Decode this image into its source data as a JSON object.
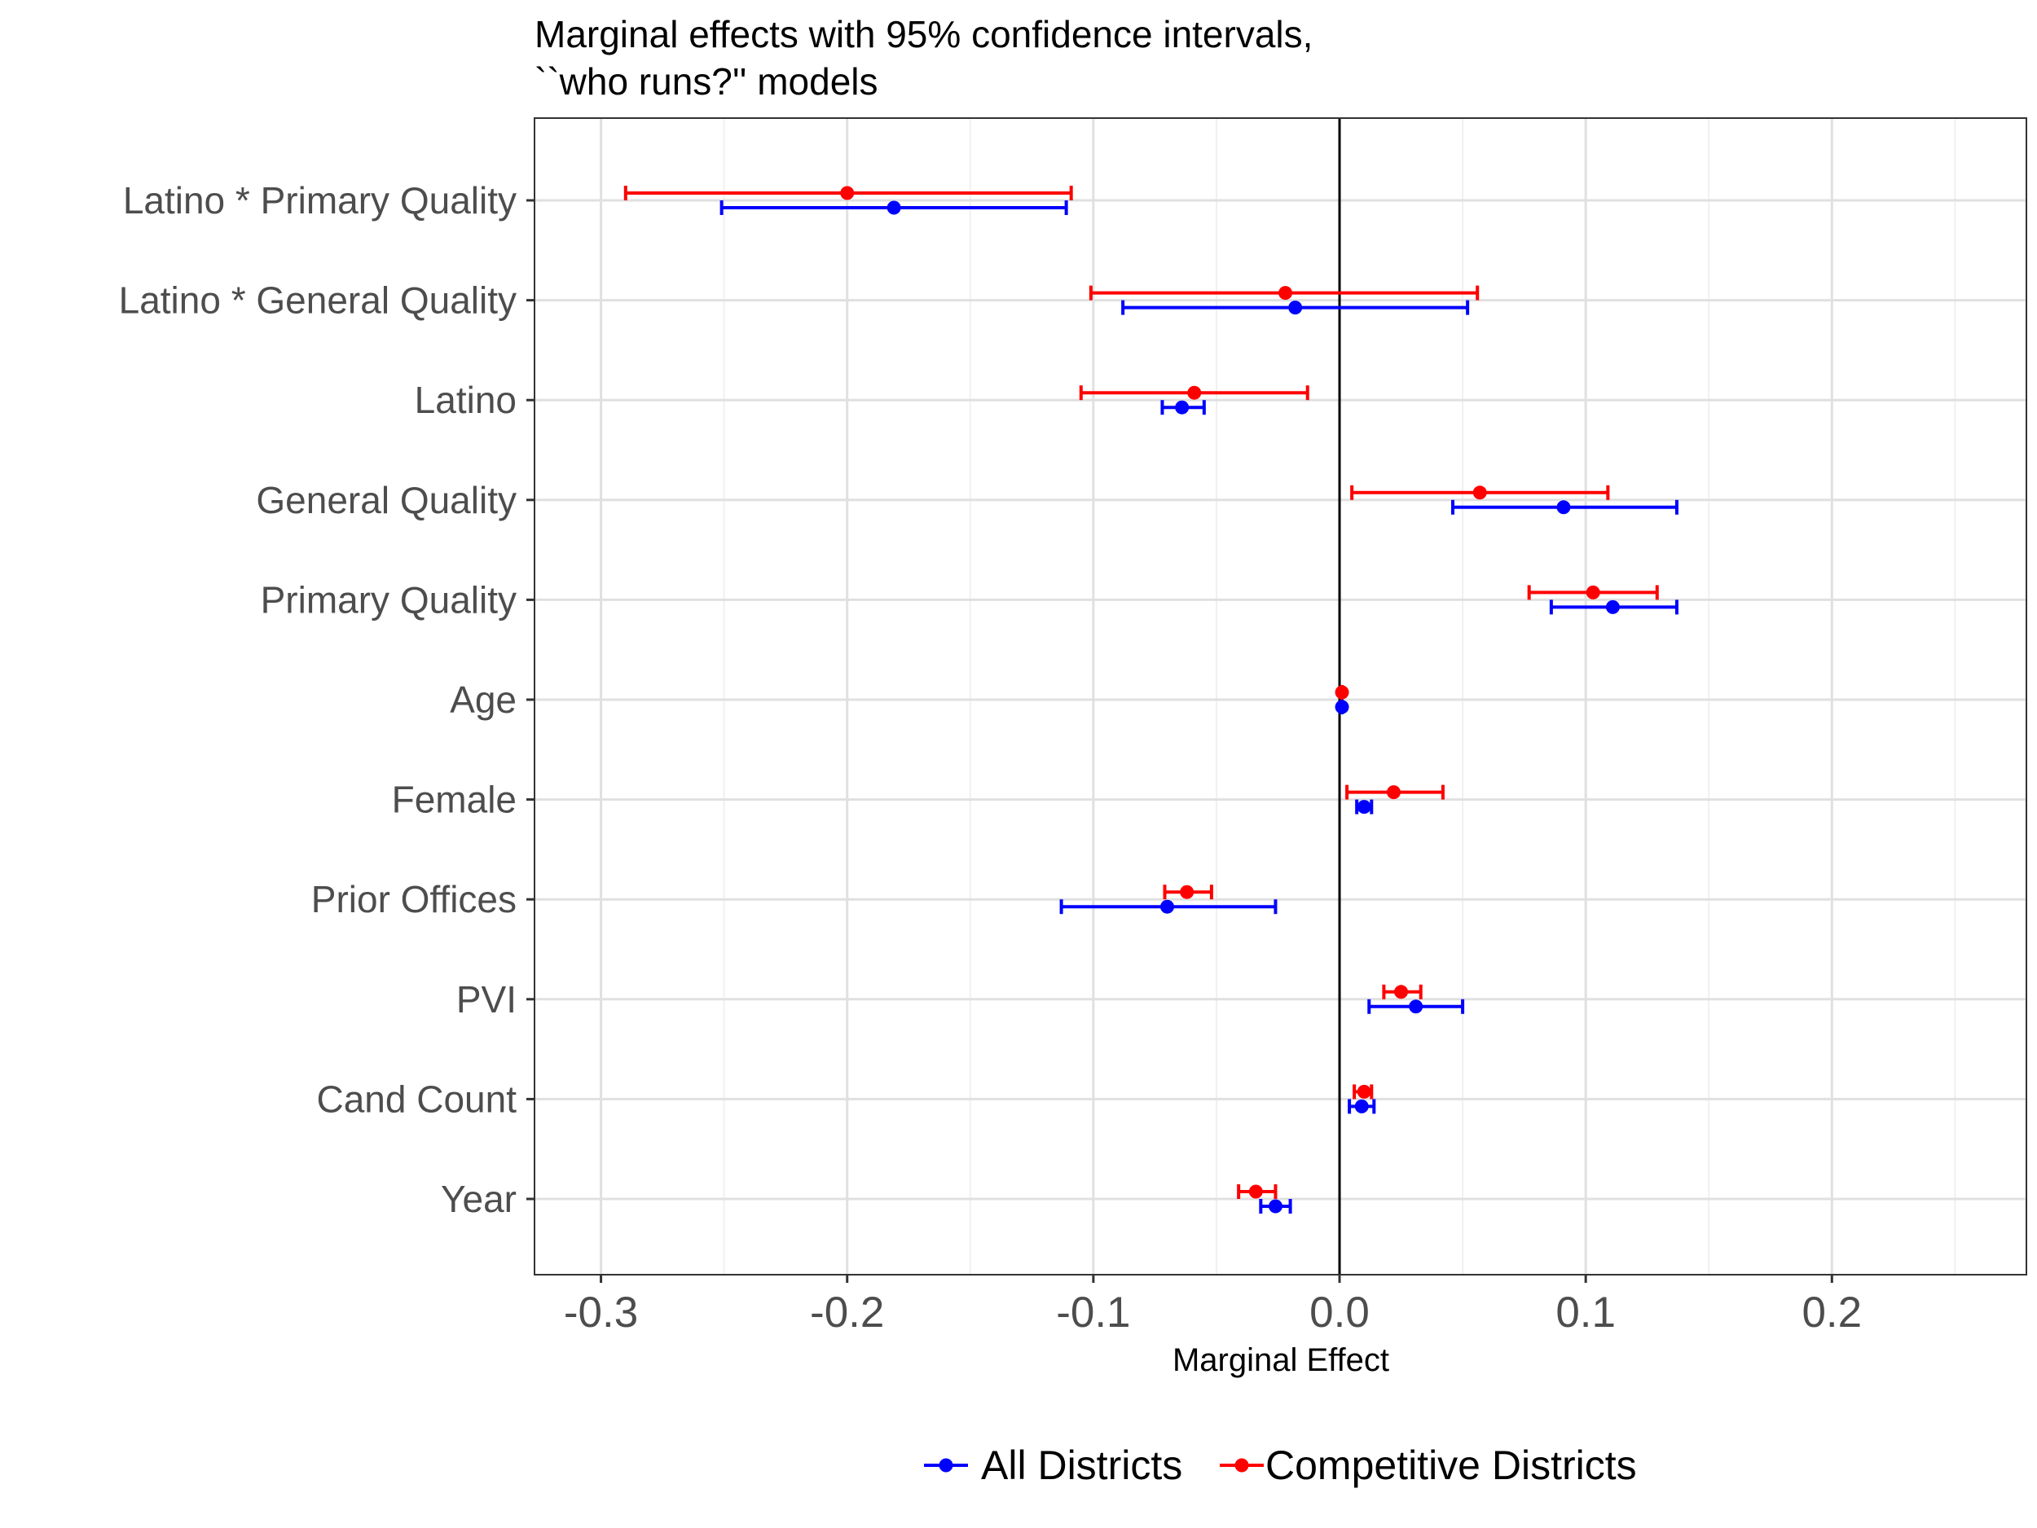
{
  "chart_data": {
    "type": "scatter",
    "title": "Marginal effects with 95% confidence intervals,",
    "subtitle": "``who runs?'' models",
    "xlabel": "Marginal Effect",
    "ylabel": "",
    "xlim": [
      -0.327,
      0.279
    ],
    "x_ticks": [
      -0.3,
      -0.2,
      -0.1,
      0.0,
      0.1,
      0.2
    ],
    "x_tick_labels": [
      "-0.3",
      "-0.2",
      "-0.1",
      "0.0",
      "0.1",
      "0.2"
    ],
    "grid": true,
    "zero_line": 0,
    "legend_position": "bottom",
    "categories": [
      "Latino * Primary Quality",
      "Latino * General Quality",
      "Latino",
      "General Quality",
      "Primary Quality",
      "Age",
      "Female",
      "Prior Offices",
      "PVI",
      "Cand Count",
      "Year"
    ],
    "series": [
      {
        "name": "All Districts",
        "color": "#0000ff",
        "estimate": [
          -0.181,
          -0.018,
          -0.064,
          0.091,
          0.111,
          0.001,
          0.01,
          -0.07,
          0.031,
          0.009,
          -0.026
        ],
        "lower": [
          -0.251,
          -0.088,
          -0.072,
          0.046,
          0.086,
          0.001,
          0.007,
          -0.113,
          0.012,
          0.004,
          -0.032
        ],
        "upper": [
          -0.111,
          0.052,
          -0.055,
          0.137,
          0.137,
          0.001,
          0.013,
          -0.026,
          0.05,
          0.014,
          -0.02
        ]
      },
      {
        "name": "Competitive Districts",
        "color": "#ff0000",
        "estimate": [
          -0.2,
          -0.022,
          -0.059,
          0.057,
          0.103,
          0.001,
          0.022,
          -0.062,
          0.025,
          0.01,
          -0.034
        ],
        "lower": [
          -0.29,
          -0.101,
          -0.105,
          0.005,
          0.077,
          0.001,
          0.003,
          -0.071,
          0.018,
          0.006,
          -0.041
        ],
        "upper": [
          -0.109,
          0.056,
          -0.013,
          0.109,
          0.129,
          0.001,
          0.042,
          -0.052,
          0.033,
          0.013,
          -0.026
        ]
      }
    ]
  }
}
